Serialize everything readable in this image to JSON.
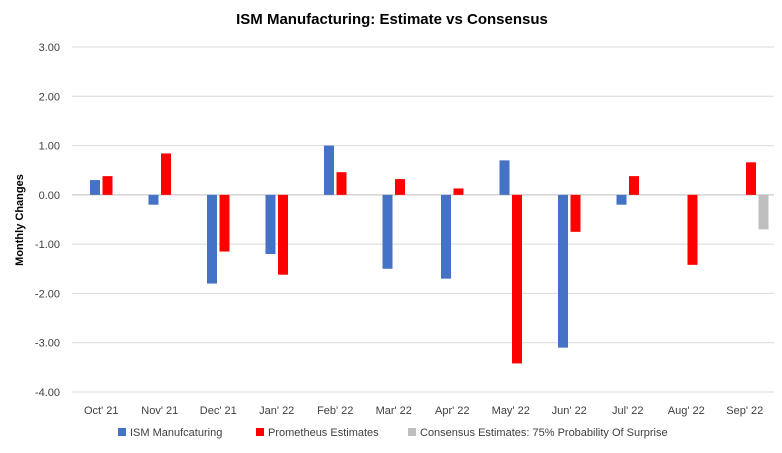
{
  "chart_data": {
    "type": "bar",
    "title": "ISM Manufacturing: Estimate vs Consensus",
    "xlabel": "",
    "ylabel": "Monthly Changes",
    "ylim": [
      -4.0,
      3.0
    ],
    "yticks": [
      "3.00",
      "2.00",
      "1.00",
      "0.00",
      "-1.00",
      "-2.00",
      "-3.00",
      "-4.00"
    ],
    "grid": true,
    "legend_position": "bottom",
    "categories": [
      "Oct' 21",
      "Nov' 21",
      "Dec' 21",
      "Jan' 22",
      "Feb' 22",
      "Mar' 22",
      "Apr' 22",
      "May' 22",
      "Jun' 22",
      "Jul' 22",
      "Aug' 22",
      "Sep' 22"
    ],
    "series": [
      {
        "name": "ISM Manufcaturing",
        "color": "#4472C4",
        "values": [
          0.3,
          -0.2,
          -1.8,
          -1.2,
          1.0,
          -1.5,
          -1.7,
          0.7,
          -3.1,
          -0.2,
          null,
          null
        ]
      },
      {
        "name": "Prometheus Estimates",
        "color": "#FF0000",
        "values": [
          0.38,
          0.84,
          -1.15,
          -1.62,
          0.46,
          0.32,
          0.13,
          -3.42,
          -0.75,
          0.38,
          -1.42,
          0.66
        ]
      },
      {
        "name": "Consensus Estimates: 75% Probability Of Surprise",
        "color": "#BFBFBF",
        "values": [
          null,
          null,
          null,
          null,
          null,
          null,
          null,
          null,
          null,
          null,
          null,
          -0.7
        ]
      }
    ]
  }
}
